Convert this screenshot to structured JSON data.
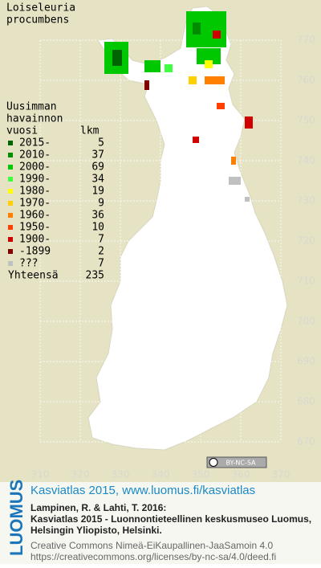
{
  "title_lines": [
    "Loiseleuria",
    "procumbens"
  ],
  "legend": {
    "heading_lines": [
      "Uusimman",
      "havainnon",
      "vuosi"
    ],
    "count_heading": "lkm",
    "items": [
      {
        "label": "2015-",
        "count": 5,
        "color": "#006400"
      },
      {
        "label": "2010-",
        "count": 37,
        "color": "#008c00"
      },
      {
        "label": "2000-",
        "count": 69,
        "color": "#00c800"
      },
      {
        "label": "1990-",
        "count": 34,
        "color": "#40ff40"
      },
      {
        "label": "1980-",
        "count": 19,
        "color": "#ffff00"
      },
      {
        "label": "1970-",
        "count": 9,
        "color": "#ffd000"
      },
      {
        "label": "1960-",
        "count": 36,
        "color": "#ff8000"
      },
      {
        "label": "1950-",
        "count": 10,
        "color": "#ff4000"
      },
      {
        "label": "1900-",
        "count": 7,
        "color": "#d00000"
      },
      {
        "label": "-1899",
        "count": 2,
        "color": "#800000"
      },
      {
        "label": "???",
        "count": 7,
        "color": "#c0c0c0"
      }
    ],
    "total_label": "Yhteensä",
    "total": 235
  },
  "grid": {
    "north": [
      770,
      760,
      750,
      740,
      730,
      720,
      710,
      700,
      690,
      680,
      670
    ],
    "east": [
      310,
      320,
      330,
      340,
      350,
      360,
      370
    ]
  },
  "license_badge": "BY-NC-SA",
  "footer": {
    "logo": "LUOMUS",
    "link": "Kasviatlas 2015, www.luomus.fi/kasviatlas",
    "citation": [
      "Lampinen, R. & Lahti, T. 2016:",
      "Kasviatlas 2015 - Luonnontieteellinen keskusmuseo Luomus,",
      "Helsingin Yliopisto, Helsinki."
    ],
    "license": [
      "Creative Commons Nimeä-EiKaupallinen-JaaSamoin 4.0",
      "https://creativecommons.org/licenses/by-nc-sa/4.0/deed.fi"
    ]
  }
}
